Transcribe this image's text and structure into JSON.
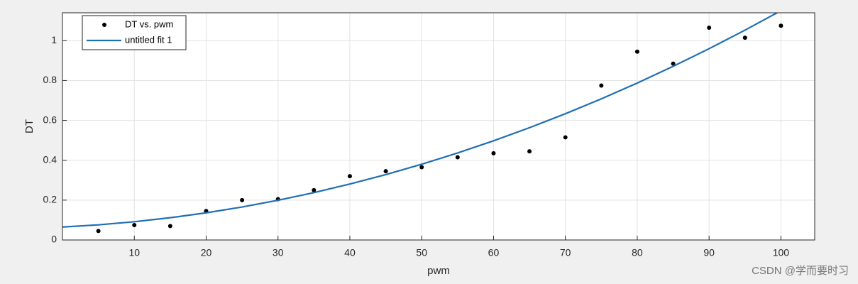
{
  "chart_data": {
    "type": "scatter-fit",
    "x_label": "pwm",
    "y_label": "DT",
    "xlim": [
      0,
      104.7
    ],
    "ylim": [
      0,
      1.14
    ],
    "xticks": [
      10,
      20,
      30,
      40,
      50,
      60,
      70,
      80,
      90,
      100
    ],
    "yticks": [
      0,
      0.2,
      0.4,
      0.6,
      0.8,
      1
    ],
    "grid": true,
    "legend": "top-left",
    "series": [
      {
        "name": "DT vs. pwm",
        "kind": "points",
        "color": "#000000",
        "x": [
          5,
          10,
          15,
          20,
          25,
          30,
          35,
          40,
          45,
          50,
          55,
          60,
          65,
          70,
          75,
          80,
          85,
          90,
          95,
          100
        ],
        "values": [
          0.045,
          0.075,
          0.07,
          0.145,
          0.2,
          0.205,
          0.25,
          0.32,
          0.345,
          0.365,
          0.415,
          0.435,
          0.445,
          0.515,
          0.775,
          0.945,
          0.885,
          1.065,
          1.015,
          1.075
        ]
      },
      {
        "name": "untitled fit 1",
        "kind": "line",
        "color": "#1f6fb4",
        "x": [
          0,
          5,
          10,
          15,
          20,
          25,
          30,
          35,
          40,
          45,
          50,
          55,
          60,
          65,
          70,
          75,
          80,
          85,
          90,
          95,
          100
        ],
        "values": [
          0.065,
          0.076,
          0.0916,
          0.1117,
          0.1363,
          0.1655,
          0.1993,
          0.2376,
          0.2806,
          0.328,
          0.38,
          0.4365,
          0.4976,
          0.5633,
          0.6335,
          0.7082,
          0.7875,
          0.8714,
          0.9599,
          1.0529,
          1.1504
        ]
      }
    ],
    "watermark": "CSDN @学而要时习"
  }
}
